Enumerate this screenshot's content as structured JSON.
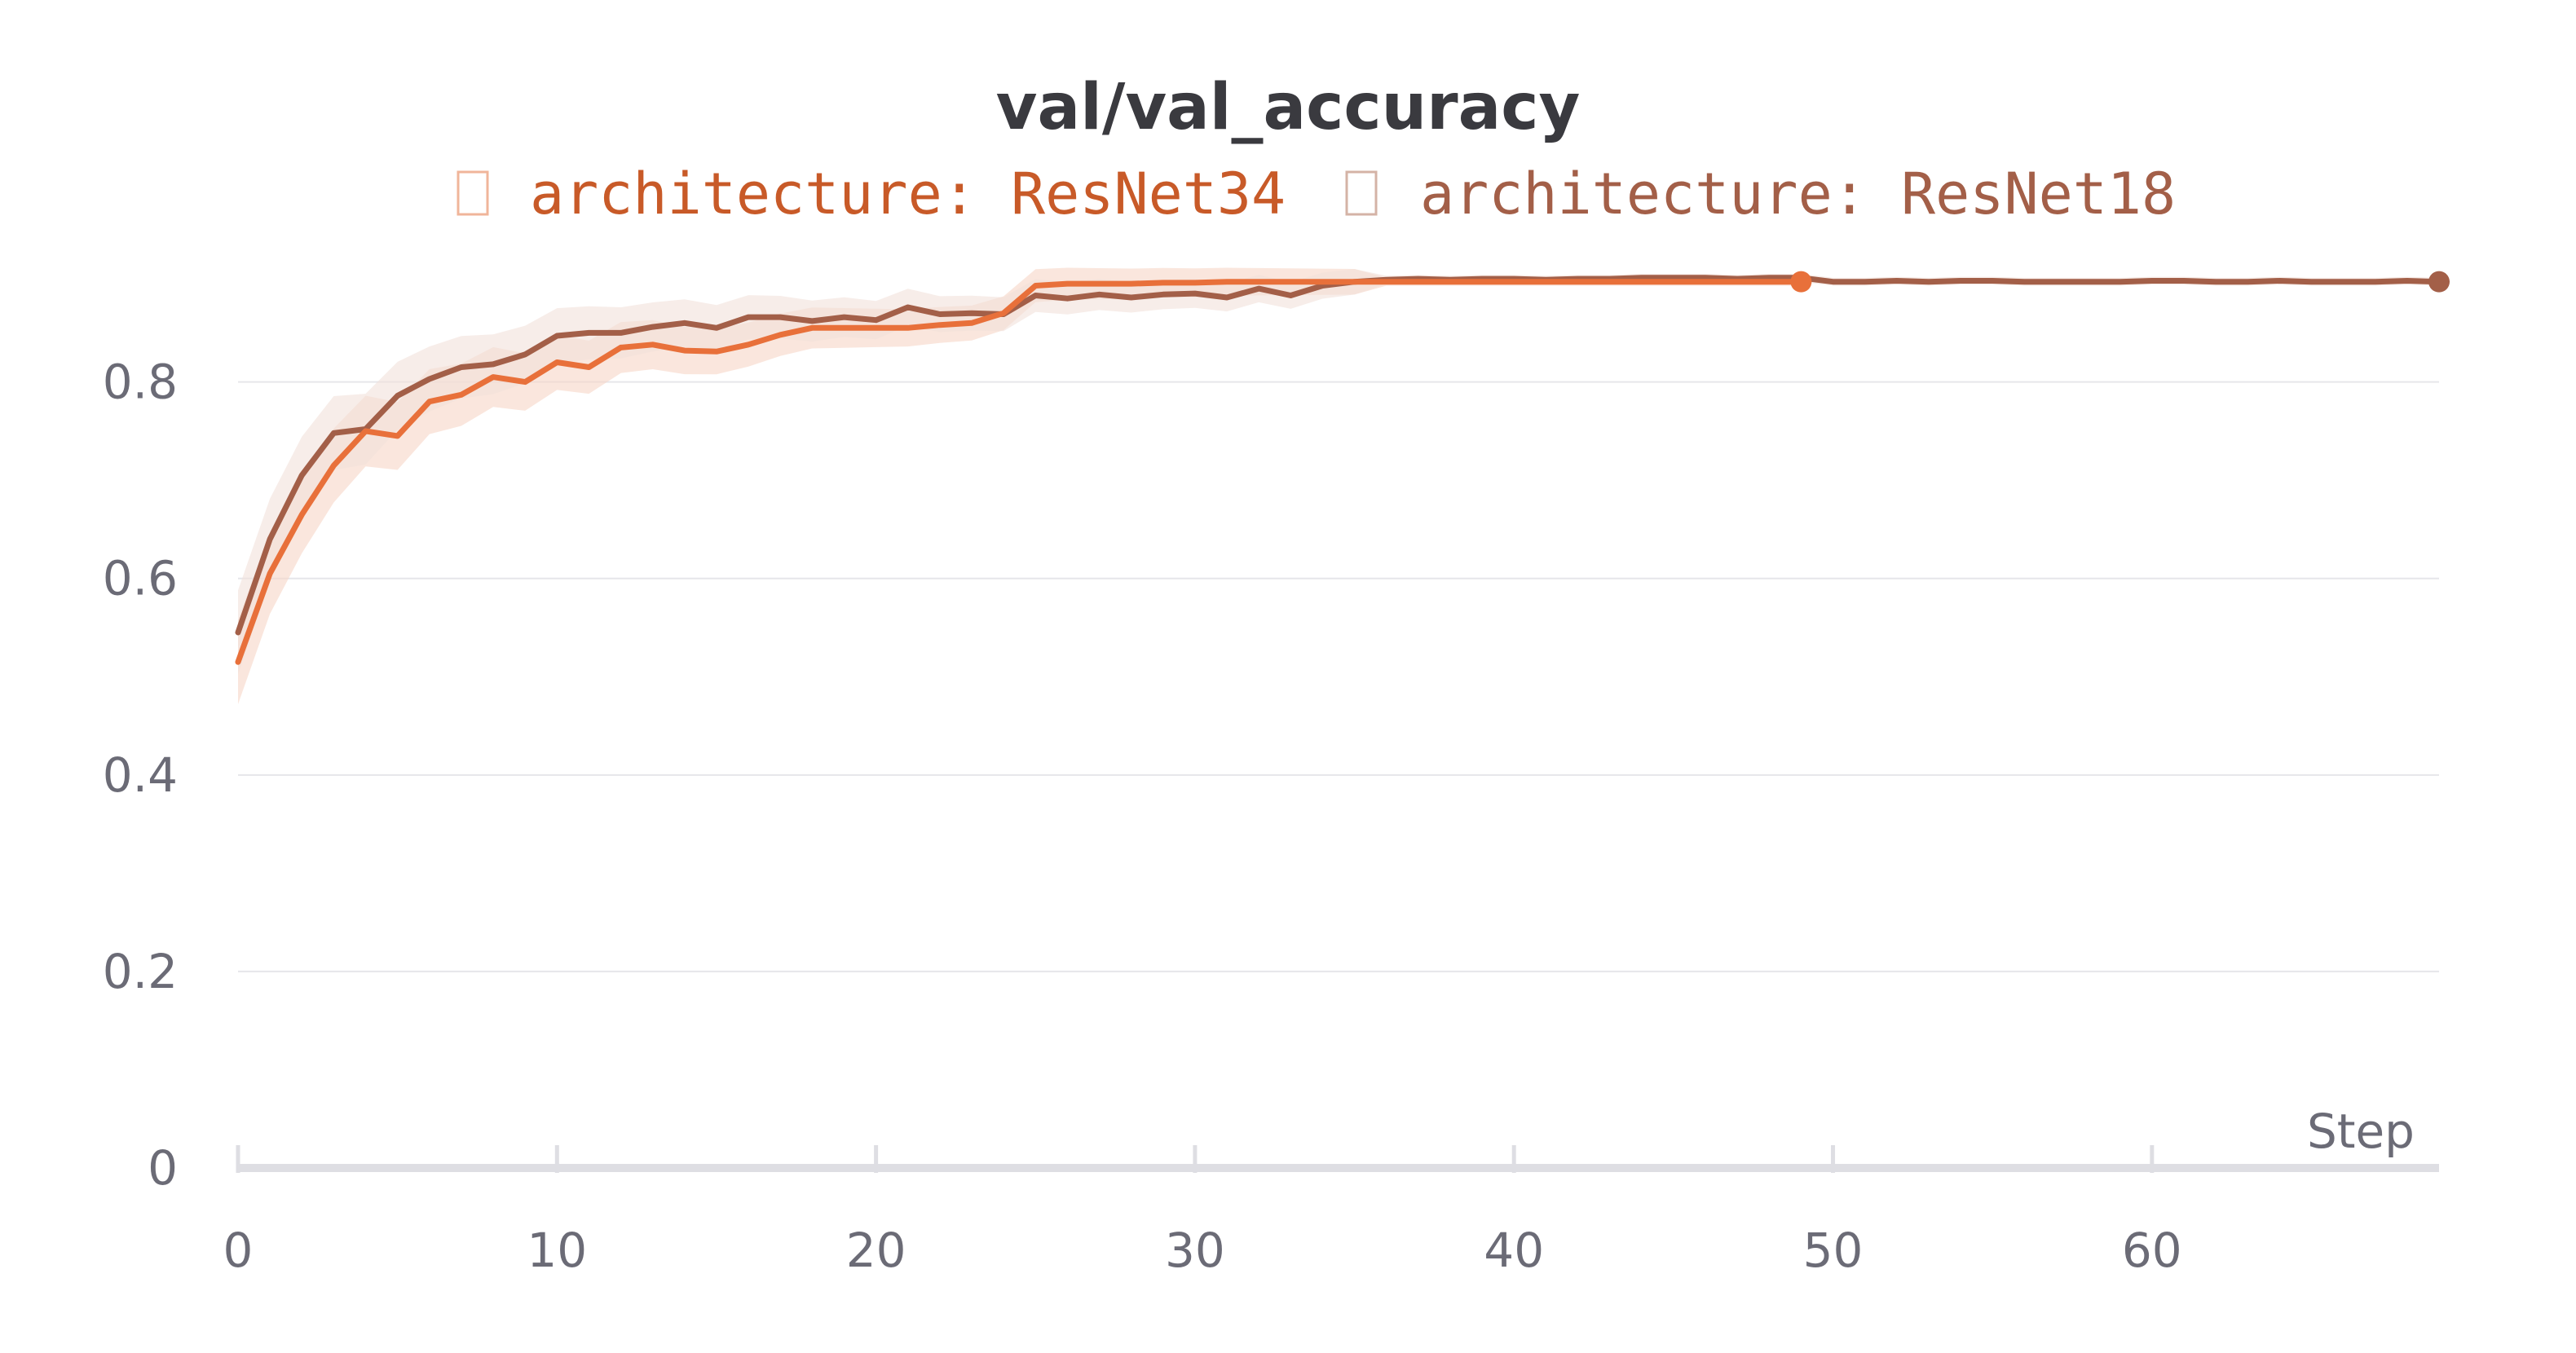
{
  "chart_data": {
    "type": "line",
    "title": "val/val_accuracy",
    "xlabel": "Step",
    "ylabel": "",
    "xlim": [
      0,
      69
    ],
    "ylim": [
      0,
      0.9
    ],
    "x_ticks": [
      0,
      10,
      20,
      30,
      40,
      50,
      60
    ],
    "y_ticks": [
      0,
      0.2,
      0.4,
      0.6,
      0.8
    ],
    "y_tick_labels": [
      "0",
      "0.2",
      "0.4",
      "0.6",
      "0.8"
    ],
    "x_tick_labels": [
      "0",
      "10",
      "20",
      "30",
      "40",
      "50",
      "60"
    ],
    "grid": true,
    "legend_position": "top-center",
    "series": [
      {
        "name": "architecture: ResNet34",
        "color": "#e8703a",
        "band_color": "#f6d6c7",
        "marker_at_end": true,
        "x": [
          0,
          1,
          2,
          3,
          4,
          5,
          6,
          7,
          8,
          9,
          10,
          11,
          12,
          13,
          14,
          15,
          16,
          17,
          18,
          19,
          20,
          21,
          22,
          23,
          24,
          25,
          26,
          27,
          28,
          29,
          30,
          31,
          32,
          33,
          34,
          35,
          36,
          37,
          38,
          39,
          40,
          41,
          42,
          43,
          44,
          45,
          46,
          47,
          48,
          49
        ],
        "values": [
          0.515,
          0.605,
          0.665,
          0.715,
          0.75,
          0.745,
          0.78,
          0.787,
          0.805,
          0.8,
          0.82,
          0.815,
          0.835,
          0.838,
          0.832,
          0.831,
          0.838,
          0.848,
          0.855,
          0.855,
          0.855,
          0.855,
          0.858,
          0.86,
          0.87,
          0.898,
          0.9,
          0.9,
          0.9,
          0.901,
          0.901,
          0.902,
          0.902,
          0.902,
          0.902,
          0.902,
          0.902,
          0.902,
          0.902,
          0.902,
          0.902,
          0.902,
          0.902,
          0.902,
          0.902,
          0.902,
          0.902,
          0.902,
          0.902,
          0.902
        ]
      },
      {
        "name": "architecture: ResNet18",
        "color": "#a35f48",
        "band_color": "#f2e1da",
        "marker_at_end": true,
        "x": [
          0,
          1,
          2,
          3,
          4,
          5,
          6,
          7,
          8,
          9,
          10,
          11,
          12,
          13,
          14,
          15,
          16,
          17,
          18,
          19,
          20,
          21,
          22,
          23,
          24,
          25,
          26,
          27,
          28,
          29,
          30,
          31,
          32,
          33,
          34,
          35,
          36,
          37,
          38,
          39,
          40,
          41,
          42,
          43,
          44,
          45,
          46,
          47,
          48,
          49,
          50,
          51,
          52,
          53,
          54,
          55,
          56,
          57,
          58,
          59,
          60,
          61,
          62,
          63,
          64,
          65,
          66,
          67,
          68,
          69
        ],
        "values": [
          0.545,
          0.64,
          0.705,
          0.748,
          0.752,
          0.786,
          0.803,
          0.815,
          0.818,
          0.828,
          0.847,
          0.85,
          0.85,
          0.856,
          0.86,
          0.855,
          0.866,
          0.866,
          0.862,
          0.866,
          0.863,
          0.876,
          0.869,
          0.87,
          0.869,
          0.888,
          0.885,
          0.889,
          0.886,
          0.889,
          0.89,
          0.886,
          0.895,
          0.888,
          0.898,
          0.902,
          0.904,
          0.905,
          0.904,
          0.905,
          0.905,
          0.904,
          0.905,
          0.905,
          0.906,
          0.906,
          0.906,
          0.905,
          0.906,
          0.906,
          0.902,
          0.902,
          0.903,
          0.902,
          0.903,
          0.903,
          0.902,
          0.902,
          0.902,
          0.902,
          0.903,
          0.903,
          0.902,
          0.902,
          0.903,
          0.902,
          0.902,
          0.902,
          0.903,
          0.902
        ]
      }
    ]
  }
}
